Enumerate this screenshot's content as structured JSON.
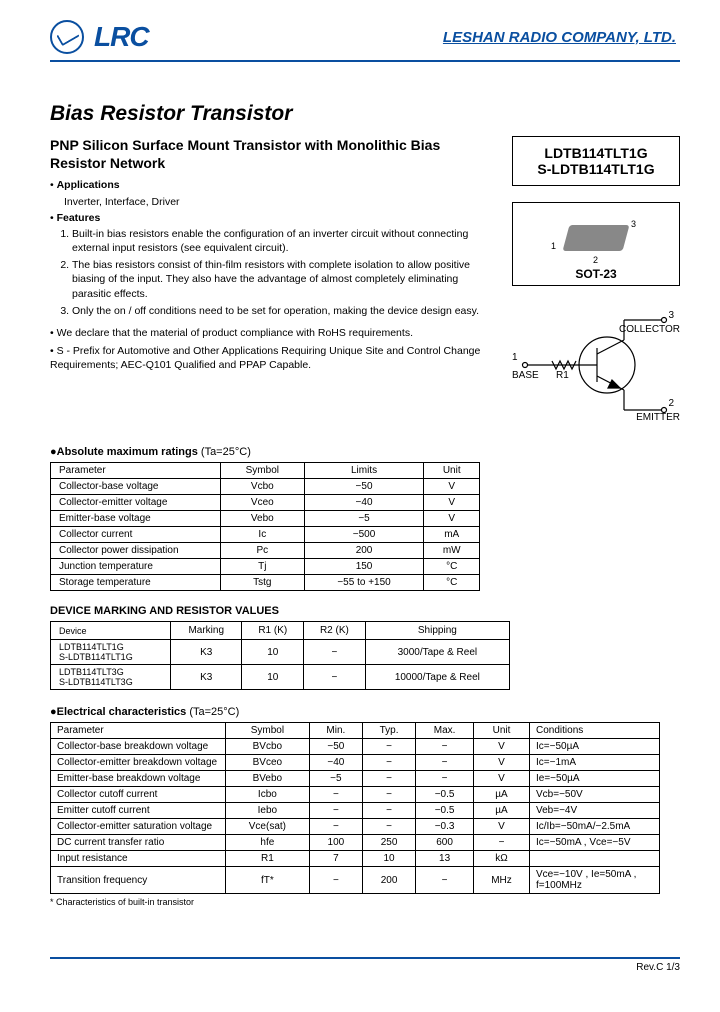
{
  "header": {
    "logo_text": "LRC",
    "company": "LESHAN RADIO COMPANY, LTD."
  },
  "title": "Bias Resistor Transistor",
  "subtitle": "PNP Silicon Surface Mount Transistor with Monolithic Bias Resistor Network",
  "applications_label": "Applications",
  "applications": "Inverter, Interface, Driver",
  "features_label": "Features",
  "features": [
    "Built-in bias resistors enable the configuration of an inverter circuit without connecting external input resistors (see equivalent circuit).",
    "The bias resistors consist of thin-film resistors with complete isolation to allow positive biasing of the input. They also have the advantage of almost completely eliminating parasitic effects.",
    "Only the on / off conditions need to be set for operation, making the device design easy."
  ],
  "notes": [
    "We declare that the material of product compliance with RoHS requirements.",
    "S - Prefix for Automotive and Other Applications Requiring Unique Site and Control Change Requirements; AEC-Q101 Qualified and PPAP Capable."
  ],
  "part_numbers": [
    "LDTB114TLT1G",
    "S-LDTB114TLT1G"
  ],
  "package": {
    "name": "SOT-23",
    "pins": {
      "p1": "1",
      "p2": "2",
      "p3": "3"
    }
  },
  "schematic": {
    "base": "BASE",
    "collector": "COLLECTOR",
    "emitter": "EMITTER",
    "r1": "R1",
    "p1": "1",
    "p2": "2",
    "p3": "3"
  },
  "abs": {
    "title": "●Absolute maximum ratings",
    "cond": "(Ta=25°C)",
    "cols": [
      "Parameter",
      "Symbol",
      "Limits",
      "Unit"
    ],
    "rows": [
      [
        "Collector-base voltage",
        "Vcbo",
        "−50",
        "V"
      ],
      [
        "Collector-emitter voltage",
        "Vceo",
        "−40",
        "V"
      ],
      [
        "Emitter-base voltage",
        "Vebo",
        "−5",
        "V"
      ],
      [
        "Collector current",
        "Ic",
        "−500",
        "mA"
      ],
      [
        "Collector power dissipation",
        "Pc",
        "200",
        "mW"
      ],
      [
        "Junction temperature",
        "Tj",
        "150",
        "°C"
      ],
      [
        "Storage temperature",
        "Tstg",
        "−55 to +150",
        "°C"
      ]
    ]
  },
  "marking": {
    "title": "DEVICE MARKING AND RESISTOR VALUES",
    "cols": [
      "Device",
      "Marking",
      "R1 (K)",
      "R2 (K)",
      "Shipping"
    ],
    "rows": [
      [
        "LDTB114TLT1G\nS-LDTB114TLT1G",
        "K3",
        "10",
        "−",
        "3000/Tape & Reel"
      ],
      [
        "LDTB114TLT3G\nS-LDTB114TLT3G",
        "K3",
        "10",
        "−",
        "10000/Tape & Reel"
      ]
    ]
  },
  "elec": {
    "title": "●Electrical characteristics",
    "cond": "(Ta=25°C)",
    "cols": [
      "Parameter",
      "Symbol",
      "Min.",
      "Typ.",
      "Max.",
      "Unit",
      "Conditions"
    ],
    "rows": [
      [
        "Collector-base breakdown voltage",
        "BVcbo",
        "−50",
        "−",
        "−",
        "V",
        "Ic=−50µA"
      ],
      [
        "Collector-emitter breakdown voltage",
        "BVceo",
        "−40",
        "−",
        "−",
        "V",
        "Ic=−1mA"
      ],
      [
        "Emitter-base breakdown voltage",
        "BVebo",
        "−5",
        "−",
        "−",
        "V",
        "Ie=−50µA"
      ],
      [
        "Collector cutoff current",
        "Icbo",
        "−",
        "−",
        "−0.5",
        "µA",
        "Vcb=−50V"
      ],
      [
        "Emitter cutoff current",
        "Iebo",
        "−",
        "−",
        "−0.5",
        "µA",
        "Veb=−4V"
      ],
      [
        "Collector-emitter saturation voltage",
        "Vce(sat)",
        "−",
        "−",
        "−0.3",
        "V",
        "Ic/Ib=−50mA/−2.5mA"
      ],
      [
        "DC current transfer ratio",
        "hfe",
        "100",
        "250",
        "600",
        "−",
        "Ic=−50mA , Vce=−5V"
      ],
      [
        "Input resistance",
        "R1",
        "7",
        "10",
        "13",
        "kΩ",
        ""
      ],
      [
        "Transition frequency",
        "fT*",
        "−",
        "200",
        "−",
        "MHz",
        "Vce=−10V , Ie=50mA , f=100MHz"
      ]
    ]
  },
  "footnote": "* Characteristics of built-in transistor",
  "footer": {
    "rev": "Rev.C 1/3"
  }
}
